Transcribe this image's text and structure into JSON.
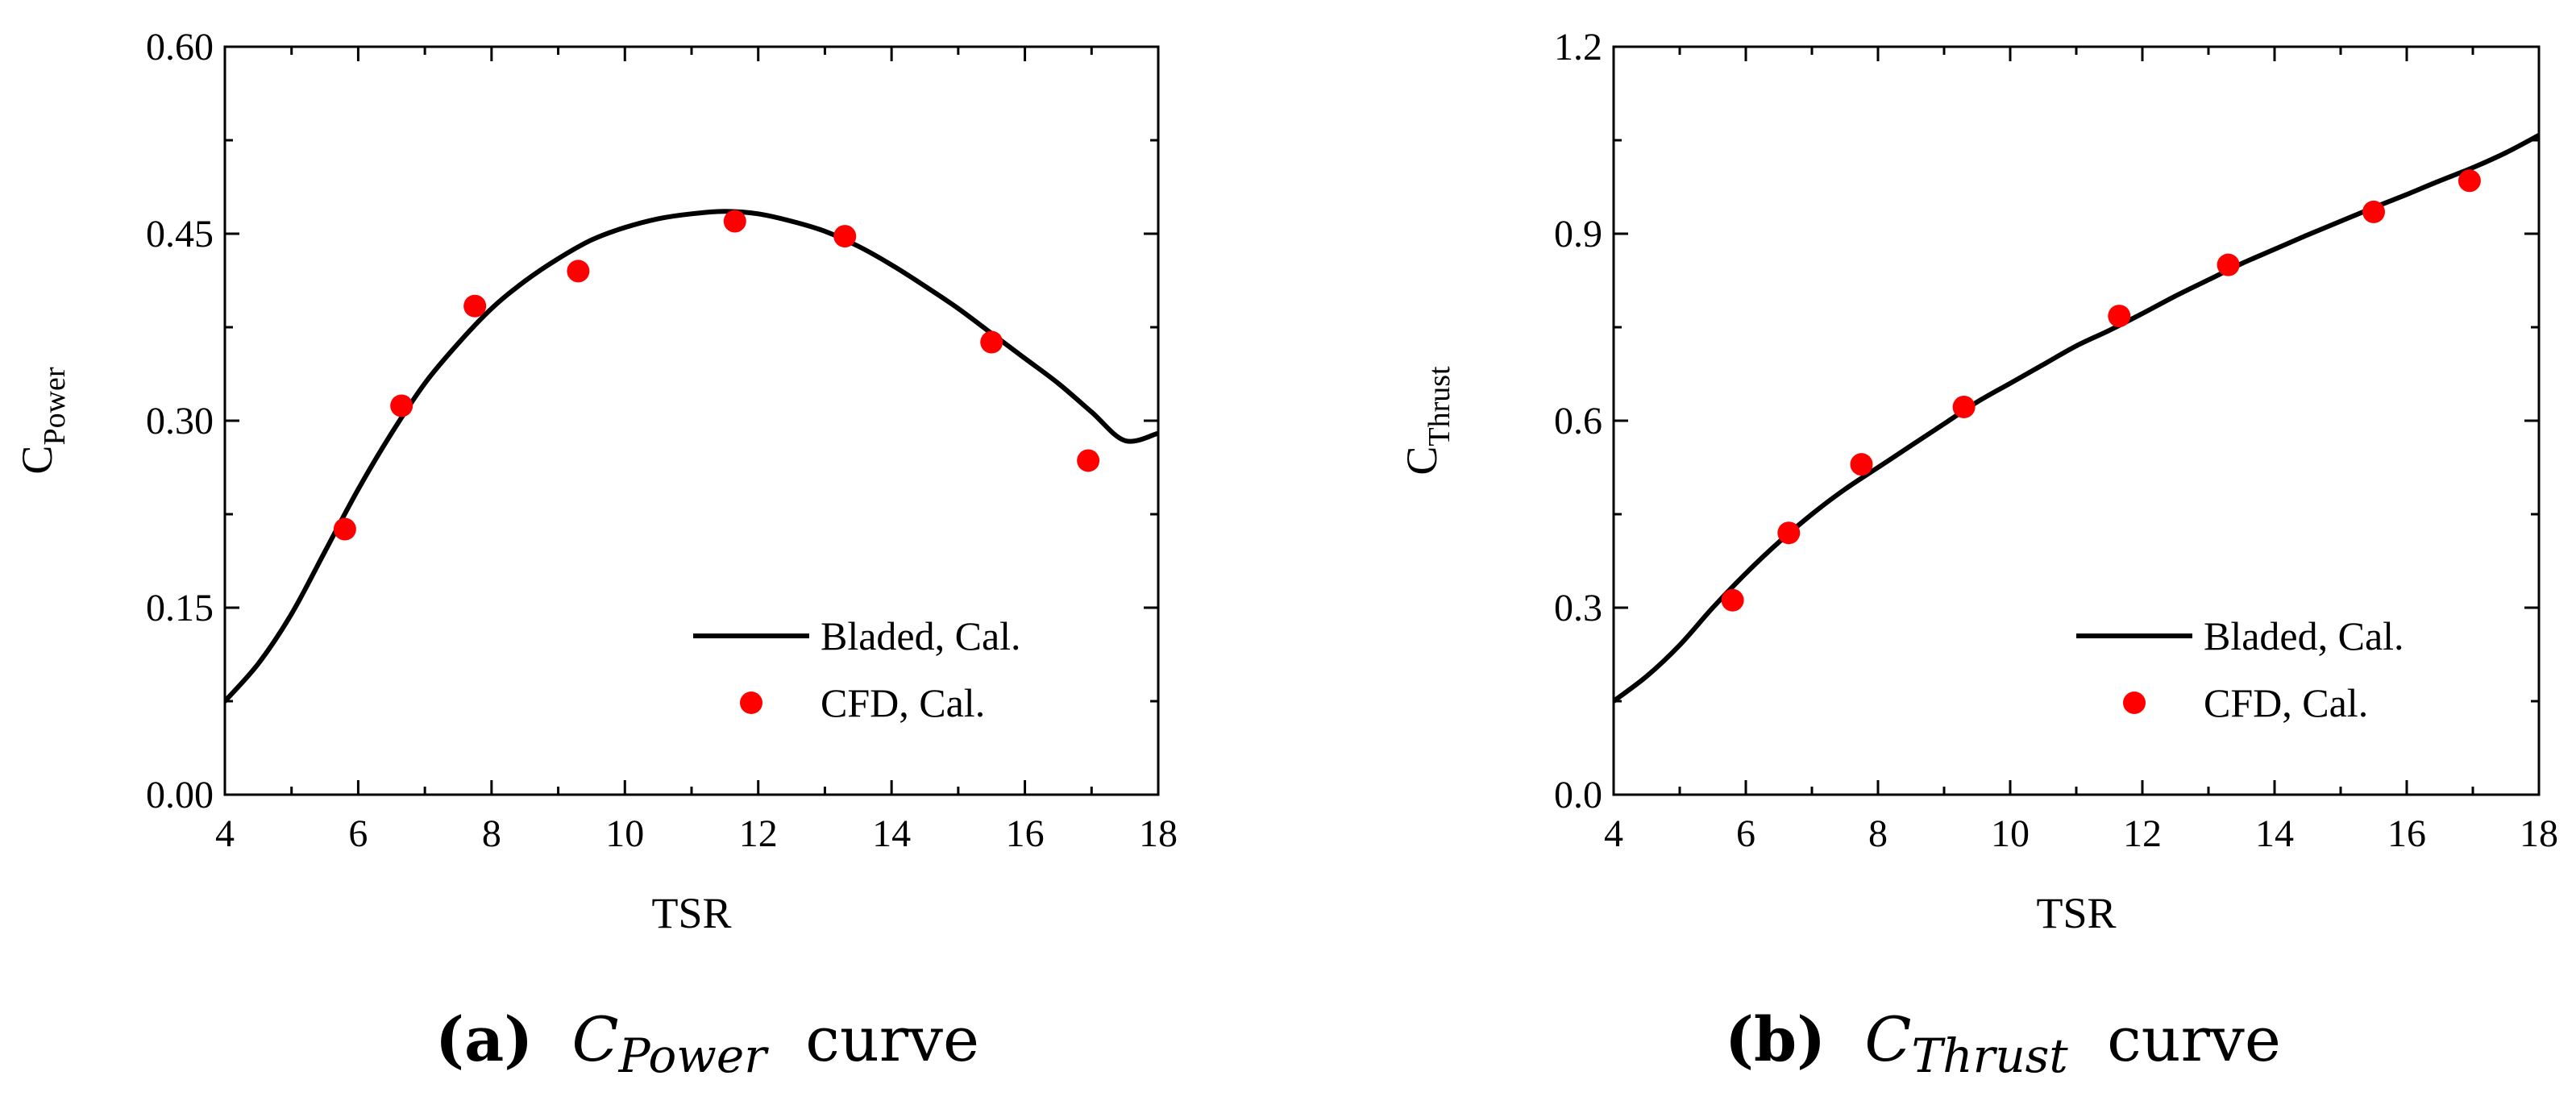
{
  "charts": [
    {
      "id": "power",
      "title": "",
      "xlabel": "TSR",
      "ylabel_main": "C",
      "ylabel_sub": "Power",
      "xlim": [
        4,
        18
      ],
      "ylim": [
        0.0,
        0.6
      ],
      "xticks": [
        4,
        6,
        8,
        10,
        12,
        14,
        16,
        18
      ],
      "xtick_labels": [
        "4",
        "6",
        "8",
        "10",
        "12",
        "14",
        "16",
        "18"
      ],
      "yticks": [
        0.0,
        0.15,
        0.3,
        0.45,
        0.6
      ],
      "ytick_labels": [
        "0.00",
        "0.15",
        "0.30",
        "0.45",
        "0.60"
      ],
      "legend_position": "bottom-right",
      "legend": [
        "Bladed, Cal.",
        "CFD, Cal."
      ],
      "caption": {
        "letter": "(a)",
        "symbol": "C",
        "subscript": "Power",
        "word": "curve"
      }
    },
    {
      "id": "thrust",
      "title": "",
      "xlabel": "TSR",
      "ylabel_main": "C",
      "ylabel_sub": "Thrust",
      "xlim": [
        4,
        18
      ],
      "ylim": [
        0.0,
        1.2
      ],
      "xticks": [
        4,
        6,
        8,
        10,
        12,
        14,
        16,
        18
      ],
      "xtick_labels": [
        "4",
        "6",
        "8",
        "10",
        "12",
        "14",
        "16",
        "18"
      ],
      "yticks": [
        0.0,
        0.3,
        0.6,
        0.9,
        1.2
      ],
      "ytick_labels": [
        "0.0",
        "0.3",
        "0.6",
        "0.9",
        "1.2"
      ],
      "legend_position": "bottom-right",
      "legend": [
        "Bladed, Cal.",
        "CFD, Cal."
      ],
      "caption": {
        "letter": "(b)",
        "symbol": "C",
        "subscript": "Thrust",
        "word": "curve"
      }
    }
  ],
  "chart_data": [
    {
      "type": "line",
      "title": "",
      "xlabel": "TSR",
      "ylabel": "CPower",
      "xlim": [
        4,
        18
      ],
      "ylim": [
        0.0,
        0.6
      ],
      "grid": false,
      "legend_position": "bottom-right",
      "series": [
        {
          "name": "Bladed, Cal.",
          "kind": "line",
          "color": "#000000",
          "x": [
            4.0,
            4.5,
            5.0,
            5.5,
            6.0,
            6.5,
            7.0,
            7.5,
            8.0,
            8.5,
            9.0,
            9.5,
            10.0,
            10.5,
            11.0,
            11.5,
            12.0,
            12.5,
            13.0,
            13.5,
            14.0,
            14.5,
            15.0,
            15.5,
            16.0,
            16.5,
            17.0,
            17.5,
            18.0
          ],
          "y": [
            0.075,
            0.105,
            0.145,
            0.195,
            0.245,
            0.29,
            0.33,
            0.362,
            0.39,
            0.412,
            0.43,
            0.445,
            0.455,
            0.462,
            0.466,
            0.468,
            0.466,
            0.46,
            0.452,
            0.44,
            0.425,
            0.408,
            0.39,
            0.37,
            0.35,
            0.33,
            0.307,
            0.284,
            0.29
          ]
        },
        {
          "name": "CFD, Cal.",
          "kind": "scatter",
          "color": "#ff0000",
          "x": [
            5.8,
            6.65,
            7.75,
            9.3,
            11.65,
            13.3,
            15.5,
            16.95
          ],
          "y": [
            0.213,
            0.312,
            0.392,
            0.42,
            0.46,
            0.448,
            0.363,
            0.268
          ]
        }
      ]
    },
    {
      "type": "line",
      "title": "",
      "xlabel": "TSR",
      "ylabel": "CThrust",
      "xlim": [
        4,
        18
      ],
      "ylim": [
        0.0,
        1.2
      ],
      "grid": false,
      "legend_position": "bottom-right",
      "series": [
        {
          "name": "Bladed, Cal.",
          "kind": "line",
          "color": "#000000",
          "x": [
            4.0,
            4.5,
            5.0,
            5.5,
            6.0,
            6.5,
            7.0,
            7.5,
            8.0,
            8.5,
            9.0,
            9.5,
            10.0,
            10.5,
            11.0,
            11.5,
            12.0,
            12.5,
            13.0,
            13.5,
            14.0,
            14.5,
            15.0,
            15.5,
            16.0,
            16.5,
            17.0,
            17.5,
            18.0
          ],
          "y": [
            0.15,
            0.19,
            0.24,
            0.3,
            0.355,
            0.405,
            0.45,
            0.49,
            0.525,
            0.56,
            0.595,
            0.63,
            0.66,
            0.69,
            0.72,
            0.745,
            0.772,
            0.8,
            0.826,
            0.852,
            0.875,
            0.898,
            0.92,
            0.942,
            0.963,
            0.985,
            1.006,
            1.03,
            1.058
          ]
        },
        {
          "name": "CFD, Cal.",
          "kind": "scatter",
          "color": "#ff0000",
          "x": [
            5.8,
            6.65,
            7.75,
            9.3,
            11.65,
            13.3,
            15.5,
            16.95
          ],
          "y": [
            0.312,
            0.42,
            0.53,
            0.622,
            0.768,
            0.85,
            0.935,
            0.985
          ]
        }
      ]
    }
  ]
}
